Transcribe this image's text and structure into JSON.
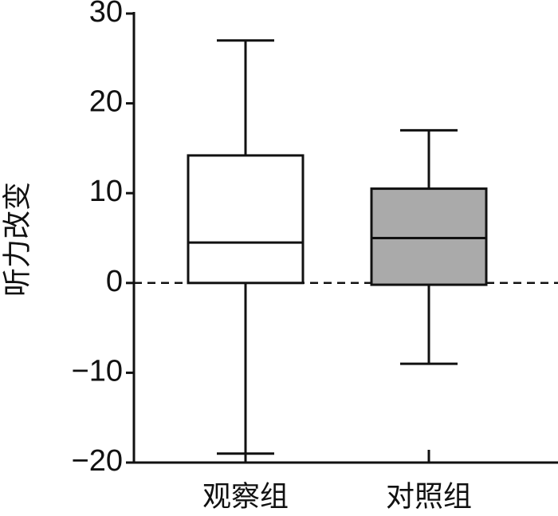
{
  "chart_data": {
    "type": "box",
    "ylabel": "听力改变",
    "categories": [
      "观察组",
      "对照组"
    ],
    "boxes": [
      {
        "min": -19,
        "q1": 0,
        "median": 4.5,
        "q3": 14.2,
        "max": 27,
        "color": "#ffffff"
      },
      {
        "min": -9,
        "q1": -0.2,
        "median": 5,
        "q3": 10.5,
        "max": 17,
        "color": "#aaaaaa"
      }
    ],
    "ylim": [
      -20,
      30
    ],
    "yticks": [
      {
        "value": -20,
        "label": "−20"
      },
      {
        "value": -10,
        "label": "−10"
      },
      0,
      10,
      20,
      30
    ],
    "reference_line": 0
  }
}
